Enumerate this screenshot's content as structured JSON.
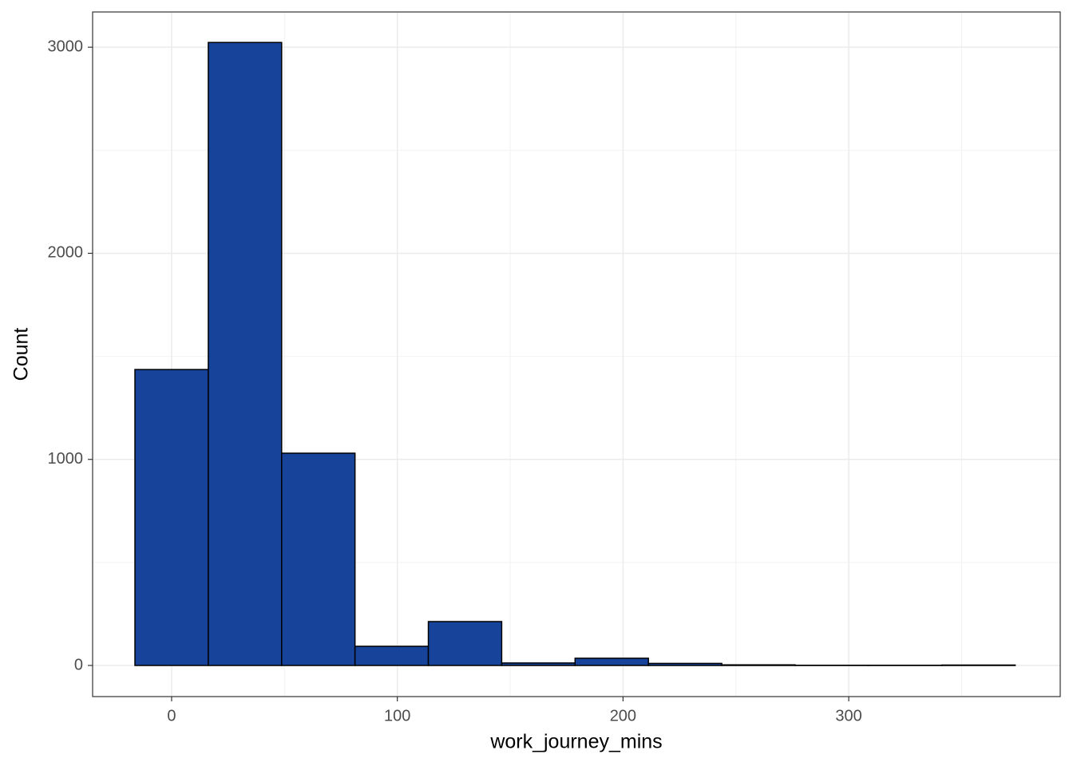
{
  "chart_data": {
    "type": "histogram",
    "x_label": "work_journey_mins",
    "y_label": "Count",
    "bins": [
      -16.25,
      16.25,
      48.75,
      81.25,
      113.75,
      146.25,
      178.75,
      211.25,
      243.75,
      276.25,
      308.75,
      341.25,
      373.75
    ],
    "counts": [
      1436,
      3023,
      1030,
      93,
      213,
      12,
      35,
      10,
      3,
      1,
      1,
      2
    ],
    "color": "#18439a",
    "edge_color": "#000000",
    "xlim": [
      -35,
      393.7
    ],
    "xticks": [
      0,
      100,
      200,
      300
    ],
    "ylim": [
      -151,
      3171
    ],
    "yticks": [
      0,
      1000,
      2000,
      3000
    ],
    "grid": true
  }
}
